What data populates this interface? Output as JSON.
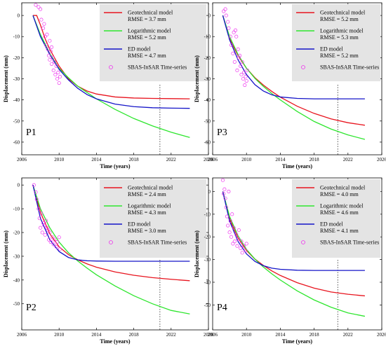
{
  "colors": {
    "geotechnical": "#e8141e",
    "logarithmic": "#2ee62e",
    "ed": "#1414c8",
    "insar": "#ee33ee",
    "legend_bg": "#e4e4e4",
    "vline": "#555555"
  },
  "chart_data": [
    {
      "type": "line",
      "panel": "P1",
      "xlabel": "Time (years)",
      "ylabel": "Displacement (mm)",
      "xlim": [
        2006,
        2026
      ],
      "ylim": [
        -66,
        6
      ],
      "xticks": [
        "2006",
        "2010",
        "2014",
        "2018",
        "2022",
        "2026"
      ],
      "yticks": [
        "0",
        "-10",
        "-20",
        "-30",
        "-40",
        "-50",
        "-60"
      ],
      "vline_x": 2020.8,
      "legend_position": "top-right",
      "series": [
        {
          "key": "geo",
          "name": "Geotechnical model",
          "rmse": "RMSE = 3.7 mm",
          "x": [
            2007.2,
            2007.6,
            2008,
            2008.5,
            2009,
            2009.5,
            2010,
            2011,
            2012,
            2013,
            2014,
            2016,
            2018,
            2020,
            2022,
            2024
          ],
          "y": [
            0,
            0,
            -4.5,
            -11,
            -16,
            -20,
            -24,
            -30,
            -33.5,
            -35.8,
            -37.2,
            -38.6,
            -39.1,
            -39.3,
            -39.4,
            -39.5
          ]
        },
        {
          "key": "log",
          "name": "Logarithmic model",
          "rmse": "RMSE = 5.2 mm",
          "x": [
            2007.2,
            2008,
            2009,
            2010,
            2011,
            2012,
            2013,
            2014,
            2016,
            2018,
            2020,
            2022,
            2024
          ],
          "y": [
            0,
            -9,
            -18,
            -25,
            -29.5,
            -33.5,
            -36.5,
            -39.5,
            -44.5,
            -48.8,
            -52.3,
            -55.3,
            -57.8
          ]
        },
        {
          "key": "ed",
          "name": "ED model",
          "rmse": "RMSE = 4.7 mm",
          "x": [
            2007.2,
            2008,
            2009,
            2010,
            2011,
            2012,
            2013,
            2014,
            2016,
            2018,
            2020,
            2022,
            2024
          ],
          "y": [
            0,
            -10,
            -18.5,
            -25.5,
            -30.5,
            -34.5,
            -37.5,
            -39.5,
            -42,
            -43.2,
            -43.7,
            -43.9,
            -44
          ]
        },
        {
          "key": "insar",
          "name": "SBAS-InSAR Time-series",
          "points": [
            [
              2007.3,
              7
            ],
            [
              2007.5,
              5
            ],
            [
              2007.6,
              8
            ],
            [
              2007.8,
              4
            ],
            [
              2008,
              3
            ],
            [
              2008.1,
              -2
            ],
            [
              2008.3,
              -6
            ],
            [
              2008.5,
              -10
            ],
            [
              2008.6,
              -14
            ],
            [
              2008.7,
              -9
            ],
            [
              2008.8,
              -16
            ],
            [
              2008.9,
              -19
            ],
            [
              2009,
              -21
            ],
            [
              2009.1,
              -17
            ],
            [
              2009.2,
              -23
            ],
            [
              2009.3,
              -20
            ],
            [
              2009.4,
              -26
            ],
            [
              2009.5,
              -22
            ],
            [
              2009.6,
              -28
            ],
            [
              2009.7,
              -24
            ],
            [
              2009.8,
              -30
            ],
            [
              2009.9,
              -27
            ],
            [
              2010,
              -32
            ],
            [
              2010.1,
              -29
            ],
            [
              2009,
              -12
            ],
            [
              2009.2,
              -15
            ],
            [
              2008.4,
              -4
            ]
          ]
        }
      ]
    },
    {
      "type": "line",
      "panel": "P3",
      "xlabel": "Time (years)",
      "ylabel": "Displacement (mm)",
      "xlim": [
        2006,
        2026
      ],
      "ylim": [
        -66,
        6
      ],
      "xticks": [
        "2006",
        "2010",
        "2014",
        "2018",
        "2022",
        "2026"
      ],
      "yticks": [
        "0",
        "-10",
        "-20",
        "-30",
        "-40",
        "-50",
        "-60"
      ],
      "vline_x": 2020.8,
      "legend_position": "top-right",
      "series": [
        {
          "key": "geo",
          "name": "Geotechnical model",
          "rmse": "RMSE = 5.2 mm",
          "x": [
            2007.2,
            2008,
            2009,
            2010,
            2011,
            2012,
            2013,
            2014,
            2016,
            2018,
            2020,
            2022,
            2024
          ],
          "y": [
            0,
            -11,
            -19,
            -25,
            -29.5,
            -33,
            -36,
            -38.7,
            -43,
            -46.4,
            -49,
            -50.8,
            -52
          ]
        },
        {
          "key": "log",
          "name": "Logarithmic model",
          "rmse": "RMSE = 5.3 mm",
          "x": [
            2007.2,
            2008,
            2009,
            2010,
            2011,
            2012,
            2013,
            2014,
            2016,
            2018,
            2020,
            2022,
            2024
          ],
          "y": [
            0,
            -10,
            -18.5,
            -25,
            -29.8,
            -33.6,
            -37,
            -40,
            -45.5,
            -50.2,
            -53.8,
            -56.6,
            -58.7
          ]
        },
        {
          "key": "ed",
          "name": "ED model",
          "rmse": "RMSE = 5.2 mm",
          "x": [
            2007.2,
            2008,
            2009,
            2010,
            2011,
            2012,
            2013,
            2014,
            2016,
            2018,
            2020,
            2022,
            2024
          ],
          "y": [
            0,
            -11.5,
            -21,
            -28,
            -32.8,
            -35.8,
            -37.6,
            -38.6,
            -39.3,
            -39.5,
            -39.5,
            -39.5,
            -39.5
          ]
        },
        {
          "key": "insar",
          "name": "SBAS-InSAR Time-series",
          "points": [
            [
              2007.3,
              2
            ],
            [
              2007.5,
              3
            ],
            [
              2007.6,
              0
            ],
            [
              2007.8,
              -3
            ],
            [
              2007.9,
              -6
            ],
            [
              2008.1,
              -10
            ],
            [
              2008.2,
              -14
            ],
            [
              2008.4,
              -18
            ],
            [
              2008.5,
              -8
            ],
            [
              2008.6,
              -22
            ],
            [
              2008.8,
              -10
            ],
            [
              2008.9,
              -26
            ],
            [
              2009,
              -16
            ],
            [
              2009.1,
              -20
            ],
            [
              2009.3,
              -24
            ],
            [
              2009.4,
              -28
            ],
            [
              2009.5,
              -22
            ],
            [
              2009.6,
              -30
            ],
            [
              2009.7,
              -27
            ],
            [
              2009.8,
              -33
            ],
            [
              2009.9,
              -29
            ],
            [
              2010,
              -31
            ],
            [
              2010.1,
              -26
            ],
            [
              2008.7,
              -7
            ],
            [
              2009.2,
              -19
            ]
          ]
        }
      ]
    },
    {
      "type": "line",
      "panel": "P2",
      "xlabel": "Time (years)",
      "ylabel": "Displacement (mm)",
      "xlim": [
        2006,
        2026
      ],
      "ylim": [
        -61,
        3
      ],
      "xticks": [
        "2006",
        "2010",
        "2014",
        "2018",
        "2022",
        "2026"
      ],
      "yticks": [
        "0",
        "-10",
        "-20",
        "-30",
        "-40",
        "-50"
      ],
      "vline_x": 2020.8,
      "legend_position": "top-right",
      "series": [
        {
          "key": "geo",
          "name": "Geotechnical model",
          "rmse": "RMSE = 2.4 mm",
          "x": [
            2007.2,
            2008,
            2009,
            2010,
            2011,
            2012,
            2013,
            2014,
            2016,
            2018,
            2020,
            2022,
            2024
          ],
          "y": [
            0,
            -11.5,
            -20.5,
            -26,
            -29.3,
            -31.5,
            -33.2,
            -34.6,
            -36.6,
            -38,
            -39,
            -39.7,
            -40.3
          ]
        },
        {
          "key": "log",
          "name": "Logarithmic model",
          "rmse": "RMSE = 4.3 mm",
          "x": [
            2007.2,
            2008,
            2009,
            2010,
            2011,
            2012,
            2013,
            2014,
            2016,
            2018,
            2020,
            2022,
            2024
          ],
          "y": [
            0,
            -10,
            -18,
            -24,
            -28.5,
            -32,
            -35,
            -37.8,
            -42.5,
            -46.6,
            -50,
            -52.8,
            -54.3
          ]
        },
        {
          "key": "ed",
          "name": "ED model",
          "rmse": "RMSE = 3.0 mm",
          "x": [
            2007.2,
            2008,
            2009,
            2010,
            2011,
            2012,
            2013,
            2014,
            2016,
            2018,
            2020,
            2022,
            2024
          ],
          "y": [
            0,
            -14,
            -23,
            -28,
            -30.5,
            -31.5,
            -31.9,
            -32,
            -32.1,
            -32.1,
            -32.1,
            -32.1,
            -32.1
          ]
        },
        {
          "key": "insar",
          "name": "SBAS-InSAR Time-series",
          "points": [
            [
              2007.3,
              0
            ],
            [
              2007.5,
              -3
            ],
            [
              2007.6,
              -6
            ],
            [
              2007.8,
              -10
            ],
            [
              2007.9,
              -14
            ],
            [
              2008,
              -18
            ],
            [
              2008.1,
              -12
            ],
            [
              2008.2,
              -20
            ],
            [
              2008.4,
              -17
            ],
            [
              2008.5,
              -21
            ],
            [
              2008.6,
              -15
            ],
            [
              2008.8,
              -19
            ],
            [
              2008.9,
              -23
            ],
            [
              2009,
              -20
            ],
            [
              2009.1,
              -24
            ],
            [
              2009.3,
              -22
            ],
            [
              2009.4,
              -25
            ],
            [
              2009.5,
              -23
            ],
            [
              2009.7,
              -26
            ],
            [
              2009.8,
              -24
            ],
            [
              2010,
              -22
            ],
            [
              2010.1,
              -27
            ],
            [
              2008.3,
              -16
            ],
            [
              2008.7,
              -18
            ]
          ]
        }
      ]
    },
    {
      "type": "line",
      "panel": "P4",
      "xlabel": "Time (years)",
      "ylabel": "Displacement (mm)",
      "xlim": [
        2006,
        2026
      ],
      "ylim": [
        -61,
        6
      ],
      "xticks": [
        "2006",
        "2010",
        "2014",
        "2018",
        "2022",
        "2026"
      ],
      "yticks": [
        "0",
        "-10",
        "-20",
        "-30",
        "-40",
        "-50"
      ],
      "vline_x": 2020.8,
      "legend_position": "top-right",
      "series": [
        {
          "key": "geo",
          "name": "Geotechnical model",
          "rmse": "RMSE = 4.0 mm",
          "x": [
            2007.2,
            2008,
            2009,
            2010,
            2011,
            2012,
            2013,
            2014,
            2016,
            2018,
            2020,
            2022,
            2024
          ],
          "y": [
            0,
            -12,
            -20.5,
            -26,
            -29.8,
            -32.6,
            -35,
            -37,
            -40.2,
            -42.6,
            -44.3,
            -45.3,
            -46
          ]
        },
        {
          "key": "log",
          "name": "Logarithmic model",
          "rmse": "RMSE = 4.6 mm",
          "x": [
            2007.2,
            2008,
            2009,
            2010,
            2011,
            2012,
            2013,
            2014,
            2016,
            2018,
            2020,
            2022,
            2024
          ],
          "y": [
            0,
            -11,
            -19.5,
            -25.5,
            -29.8,
            -33.3,
            -36.3,
            -39,
            -43.8,
            -47.8,
            -51,
            -53.5,
            -55
          ]
        },
        {
          "key": "ed",
          "name": "ED model",
          "rmse": "RMSE = 4.1 mm",
          "x": [
            2007.2,
            2008,
            2009,
            2010,
            2011,
            2012,
            2013,
            2014,
            2016,
            2018,
            2020,
            2022,
            2024
          ],
          "y": [
            0,
            -13,
            -22,
            -27.5,
            -30.8,
            -32.7,
            -33.8,
            -34.3,
            -34.7,
            -34.8,
            -34.8,
            -34.8,
            -34.8
          ]
        },
        {
          "key": "insar",
          "name": "SBAS-InSAR Time-series",
          "points": [
            [
              2007.2,
              5
            ],
            [
              2007.4,
              1
            ],
            [
              2007.5,
              -3
            ],
            [
              2007.6,
              -7
            ],
            [
              2007.7,
              -11
            ],
            [
              2007.8,
              -15
            ],
            [
              2007.9,
              0
            ],
            [
              2008,
              -18
            ],
            [
              2008.1,
              -13
            ],
            [
              2008.2,
              -20
            ],
            [
              2008.3,
              -10
            ],
            [
              2008.5,
              -16
            ],
            [
              2008.6,
              -22
            ],
            [
              2008.8,
              -19
            ],
            [
              2008.9,
              -24
            ],
            [
              2009,
              -21
            ],
            [
              2009.1,
              -17
            ],
            [
              2009.3,
              -25
            ],
            [
              2009.4,
              -22
            ],
            [
              2009.5,
              -27
            ],
            [
              2009.7,
              -24
            ],
            [
              2009.9,
              -26
            ],
            [
              2010,
              -23
            ],
            [
              2007.3,
              -1
            ],
            [
              2008.4,
              -23
            ]
          ]
        }
      ]
    }
  ]
}
